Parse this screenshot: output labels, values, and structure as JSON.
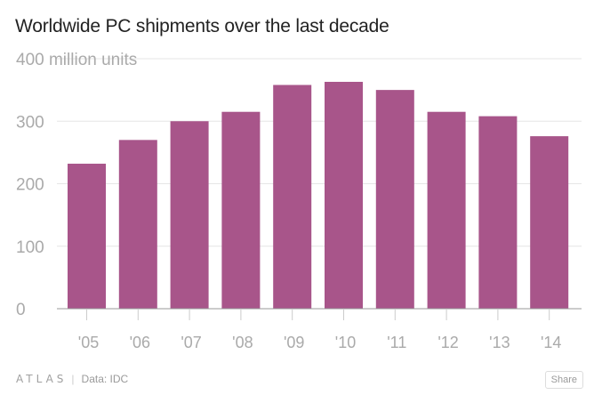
{
  "title": "Worldwide PC shipments over the last decade",
  "footer": {
    "brand": "ATLAS",
    "source": "Data: IDC",
    "share_label": "Share"
  },
  "colors": {
    "bar": "#a8558a",
    "grid": "#e6e6e6",
    "axis": "#999999",
    "tick_text": "#aaaaaa"
  },
  "chart_data": {
    "type": "bar",
    "title": "Worldwide PC shipments over the last decade",
    "xlabel": "",
    "ylabel": "",
    "categories": [
      "'05",
      "'06",
      "'07",
      "'08",
      "'09",
      "'10",
      "'11",
      "'12",
      "'13",
      "'14"
    ],
    "values": [
      232,
      270,
      300,
      315,
      358,
      363,
      350,
      315,
      308,
      276
    ],
    "ylim": [
      0,
      400
    ],
    "yticks": [
      0,
      100,
      200,
      300,
      400
    ],
    "ytick_labels": [
      "0",
      "100",
      "200",
      "300",
      "400 million units"
    ],
    "grid": true
  }
}
